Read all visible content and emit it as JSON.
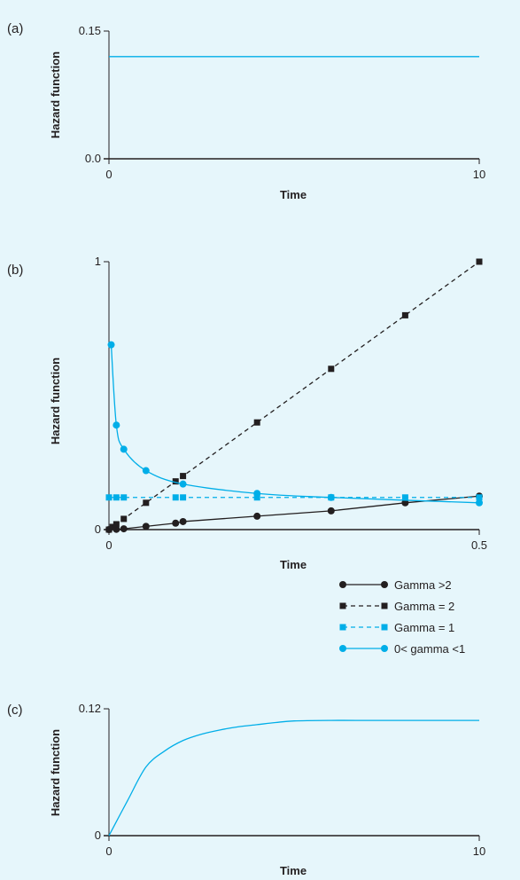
{
  "chart_data": [
    {
      "panel_label": "(a)",
      "type": "line",
      "xlabel": "Time",
      "ylabel": "Hazard function",
      "xlim": [
        0,
        10
      ],
      "ylim": [
        0,
        0.15
      ],
      "x_ticks": [
        "0",
        "10"
      ],
      "y_ticks": [
        "0.0",
        "0.15"
      ],
      "series": [
        {
          "color": "#00aee8",
          "x": [
            0,
            10
          ],
          "y": [
            0.12,
            0.12
          ]
        }
      ]
    },
    {
      "panel_label": "(b)",
      "type": "line",
      "xlabel": "Time",
      "ylabel": "Hazard function",
      "xlim": [
        0,
        0.5
      ],
      "ylim": [
        0,
        1
      ],
      "x_ticks": [
        "0",
        "0.5"
      ],
      "y_ticks": [
        "0",
        "1"
      ],
      "legend_position": "bottom-right",
      "series": [
        {
          "name": "Gamma >2",
          "color": "#231f20",
          "dash": "solid",
          "marker": "circle",
          "x": [
            0,
            0.01,
            0.02,
            0.05,
            0.09,
            0.1,
            0.2,
            0.3,
            0.4,
            0.5
          ],
          "y": [
            0.0,
            0.001,
            0.003,
            0.012,
            0.024,
            0.03,
            0.05,
            0.07,
            0.1,
            0.125
          ]
        },
        {
          "name": "Gamma = 2",
          "color": "#231f20",
          "dash": "dashed",
          "marker": "square",
          "x": [
            0,
            0.005,
            0.01,
            0.02,
            0.05,
            0.09,
            0.1,
            0.2,
            0.3,
            0.4,
            0.5
          ],
          "y": [
            0.0,
            0.01,
            0.02,
            0.04,
            0.1,
            0.18,
            0.2,
            0.4,
            0.6,
            0.8,
            1.0
          ]
        },
        {
          "name": "Gamma = 1",
          "color": "#00aee8",
          "dash": "dashed",
          "marker": "square",
          "x": [
            0,
            0.01,
            0.02,
            0.09,
            0.1,
            0.2,
            0.3,
            0.4,
            0.5
          ],
          "y": [
            0.12,
            0.12,
            0.12,
            0.12,
            0.12,
            0.12,
            0.12,
            0.12,
            0.12
          ]
        },
        {
          "name": "0< gamma <1",
          "color": "#00aee8",
          "dash": "solid",
          "marker": "circle",
          "x": [
            0.003,
            0.01,
            0.02,
            0.05,
            0.1,
            0.2,
            0.3,
            0.5
          ],
          "y": [
            0.69,
            0.39,
            0.3,
            0.22,
            0.17,
            0.135,
            0.12,
            0.1
          ]
        }
      ]
    },
    {
      "panel_label": "(c)",
      "type": "line",
      "xlabel": "Time",
      "ylabel": "Hazard function",
      "xlim": [
        0,
        10
      ],
      "ylim": [
        0,
        0.12
      ],
      "x_ticks": [
        "0",
        "10"
      ],
      "y_ticks": [
        "0",
        "0.12"
      ],
      "series": [
        {
          "color": "#00aee8",
          "x": [
            0,
            0.5,
            1.0,
            1.5,
            2.0,
            2.5,
            3.0,
            3.5,
            4.0,
            4.5,
            5.0,
            6.0,
            7.0,
            8.0,
            9.0,
            10.0
          ],
          "y": [
            0,
            0.033,
            0.065,
            0.08,
            0.09,
            0.096,
            0.1,
            0.103,
            0.105,
            0.107,
            0.1085,
            0.109,
            0.109,
            0.109,
            0.109,
            0.109
          ]
        }
      ]
    }
  ]
}
